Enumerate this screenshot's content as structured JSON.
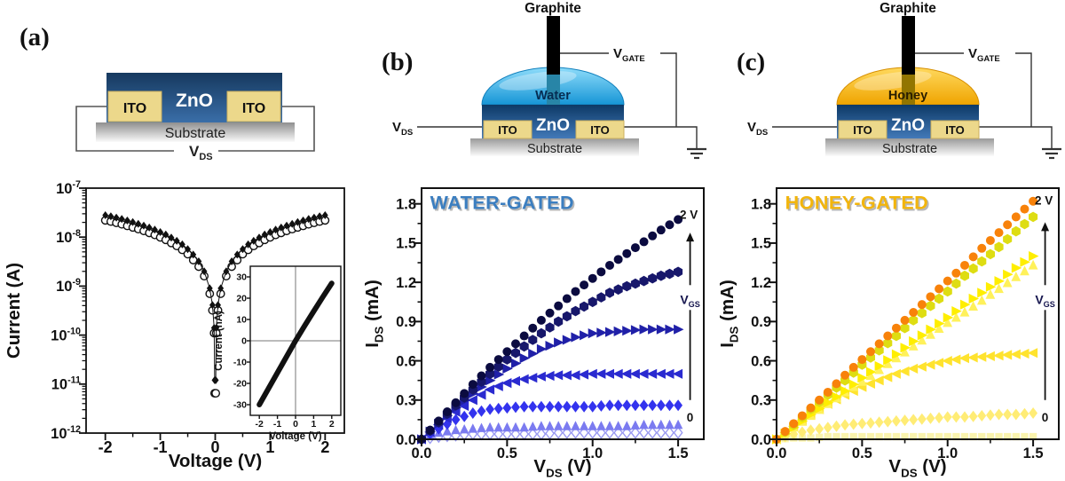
{
  "colors": {
    "water": "#29abe2",
    "honey": "#f5a800",
    "zno_blue": "#2d5f9a",
    "ito_tan": "#ecd88b",
    "substrate_gray": "#9a9a9a",
    "water_badge": "#3b7ec0",
    "honey_badge": "#f2b50d",
    "series_blue_dark": "#0b0b40",
    "series_orange": "#f8820a",
    "annotation_navy": "#15154e"
  },
  "panels": {
    "a": {
      "tag": "(a)",
      "schematic": {
        "zno": "ZnO",
        "ito_left": "ITO",
        "ito_right": "ITO",
        "substrate": "Substrate",
        "vds_base": "V",
        "vds_sub": "DS"
      }
    },
    "b": {
      "tag": "(b)",
      "schematic": {
        "electrode": "Graphite",
        "liquid": "Water",
        "zno": "ZnO",
        "ito_left": "ITO",
        "ito_right": "ITO",
        "substrate": "Substrate",
        "vds_base": "V",
        "vds_sub": "DS",
        "vgate_base": "V",
        "vgate_sub": "GATE"
      }
    },
    "c": {
      "tag": "(c)",
      "schematic": {
        "electrode": "Graphite",
        "liquid": "Honey",
        "zno": "ZnO",
        "ito_left": "ITO",
        "ito_right": "ITO",
        "substrate": "Substrate",
        "vds_base": "V",
        "vds_sub": "DS",
        "vgate_base": "V",
        "vgate_sub": "GATE"
      }
    }
  },
  "chart_data": [
    {
      "id": "a-main",
      "type": "scatter",
      "xlabel": [
        {
          "t": "Voltage (V)"
        }
      ],
      "ylabel": [
        {
          "t": "Current (A)"
        }
      ],
      "xlim": [
        -2.35,
        2.35
      ],
      "ylim": [
        1e-12,
        1e-07
      ],
      "yscale": "log",
      "x_major": {
        "v": [
          -2,
          -1,
          0,
          1,
          2
        ],
        "t": [
          "-2",
          "-1",
          "0",
          "1",
          "2"
        ]
      },
      "x_minor": [
        -1.5,
        -0.5,
        0.5,
        1.5
      ],
      "y_major": [
        {
          "v": 1e-07,
          "exp": "-7"
        },
        {
          "v": 1e-08,
          "exp": "-8"
        },
        {
          "v": 1e-09,
          "exp": "-9"
        },
        {
          "v": 1e-10,
          "exp": "-10"
        },
        {
          "v": 1e-11,
          "exp": "-11"
        },
        {
          "v": 1e-12,
          "exp": "-12"
        }
      ],
      "y_log_minor": true,
      "series": [
        {
          "name": "iv-sweep-open-circles",
          "marker": "circle-open",
          "color": "#111111",
          "size": 4.2,
          "x": [
            -2,
            -1.9,
            -1.8,
            -1.7,
            -1.6,
            -1.5,
            -1.4,
            -1.3,
            -1.2,
            -1.1,
            -1.0,
            -0.9,
            -0.8,
            -0.7,
            -0.6,
            -0.5,
            -0.4,
            -0.3,
            -0.2,
            -0.1,
            -0.05,
            -0.02,
            -0.01,
            0.01,
            0.02,
            0.05,
            0.1,
            0.2,
            0.3,
            0.4,
            0.5,
            0.6,
            0.7,
            0.8,
            0.9,
            1.0,
            1.1,
            1.2,
            1.3,
            1.4,
            1.5,
            1.6,
            1.7,
            1.8,
            1.9,
            2.0
          ],
          "y": [
            2.2e-08,
            2.08e-08,
            1.96e-08,
            1.83e-08,
            1.7e-08,
            1.58e-08,
            1.46e-08,
            1.34e-08,
            1.22e-08,
            1.11e-08,
            9.9e-09,
            8.8e-09,
            7.6e-09,
            6.6e-09,
            5.5e-09,
            4.5e-09,
            3.4e-09,
            2.5e-09,
            1.6e-09,
            7e-10,
            3.2e-10,
            1.1e-10,
            6.5e-12,
            6.5e-12,
            1.1e-10,
            3.2e-10,
            7e-10,
            1.6e-09,
            2.5e-09,
            3.4e-09,
            4.5e-09,
            5.5e-09,
            6.6e-09,
            7.6e-09,
            8.8e-09,
            9.9e-09,
            1.11e-08,
            1.22e-08,
            1.34e-08,
            1.46e-08,
            1.58e-08,
            1.7e-08,
            1.83e-08,
            1.96e-08,
            2.08e-08,
            2.2e-08
          ]
        },
        {
          "name": "iv-sweep-filled-diamonds",
          "marker": "diamond",
          "color": "#111111",
          "size": 3.6,
          "line": true,
          "width": 1,
          "x": [
            -2,
            -1.9,
            -1.8,
            -1.7,
            -1.6,
            -1.5,
            -1.4,
            -1.3,
            -1.2,
            -1.1,
            -1.0,
            -0.9,
            -0.8,
            -0.7,
            -0.6,
            -0.5,
            -0.4,
            -0.3,
            -0.2,
            -0.1,
            -0.05,
            -0.02,
            -0.01,
            0.01,
            0.02,
            0.05,
            0.1,
            0.2,
            0.3,
            0.4,
            0.5,
            0.6,
            0.7,
            0.8,
            0.9,
            1.0,
            1.1,
            1.2,
            1.3,
            1.4,
            1.5,
            1.6,
            1.7,
            1.8,
            1.9,
            2.0
          ],
          "y": [
            2.8e-08,
            2.66e-08,
            2.5e-08,
            2.34e-08,
            2.18e-08,
            2.02e-08,
            1.87e-08,
            1.72e-08,
            1.57e-08,
            1.42e-08,
            1.27e-08,
            1.13e-08,
            9.8e-09,
            8.4e-09,
            7.1e-09,
            5.7e-09,
            4.4e-09,
            3.2e-09,
            2e-09,
            9e-10,
            4.1e-10,
            1.4e-10,
            1.2e-11,
            1.2e-11,
            1.4e-10,
            4.1e-10,
            9e-10,
            2e-09,
            3.2e-09,
            4.4e-09,
            5.7e-09,
            7.1e-09,
            8.4e-09,
            9.8e-09,
            1.13e-08,
            1.27e-08,
            1.42e-08,
            1.57e-08,
            1.72e-08,
            1.87e-08,
            2.02e-08,
            2.18e-08,
            2.34e-08,
            2.5e-08,
            2.66e-08,
            2.8e-08
          ]
        }
      ]
    },
    {
      "id": "a-inset",
      "type": "line",
      "xlabel": [
        {
          "t": "Voltage (V)"
        }
      ],
      "ylabel": [
        {
          "t": "Current (nA)"
        }
      ],
      "xlim": [
        -2.5,
        2.5
      ],
      "ylim": [
        -35,
        35
      ],
      "x_major": {
        "v": [
          -2,
          -1,
          0,
          1,
          2
        ],
        "t": [
          "-2",
          "-1",
          "0",
          "1",
          "2"
        ]
      },
      "y_major": {
        "v": [
          30,
          20,
          10,
          0,
          -10,
          -20,
          -30
        ],
        "t": [
          "30",
          "20",
          "10",
          "0",
          "-10",
          "-20",
          "-30"
        ]
      },
      "zero_lines": true,
      "bg": "#ffffff",
      "series": [
        {
          "name": "iv-linear",
          "type": "line",
          "color": "#111111",
          "width": 6,
          "x": [
            -2,
            -1.5,
            -1,
            -0.5,
            0,
            0.5,
            1,
            1.5,
            2
          ],
          "y": [
            -30,
            -22.5,
            -15,
            -7.5,
            0,
            7,
            13.8,
            20.5,
            27
          ]
        }
      ]
    },
    {
      "id": "b",
      "type": "scatter",
      "densify": true,
      "badge": {
        "text": "WATER-GATED",
        "color": "#3b7ec0",
        "x": 0.05,
        "y": 1.76
      },
      "xlabel": [
        {
          "t": "V"
        },
        {
          "t": "DS",
          "sub": true
        },
        {
          "t": " (V)"
        }
      ],
      "ylabel": [
        {
          "t": "I"
        },
        {
          "t": "DS",
          "sub": true
        },
        {
          "t": " (mA)"
        }
      ],
      "xlim": [
        0,
        1.65
      ],
      "ylim": [
        0,
        1.92
      ],
      "x_major": {
        "v": [
          0,
          0.5,
          1,
          1.5
        ],
        "t": [
          "0.0",
          "0.5",
          "1.0",
          "1.5"
        ]
      },
      "x_minor": [
        0.25,
        0.75,
        1.25
      ],
      "y_major": {
        "v": [
          0,
          0.3,
          0.6,
          0.9,
          1.2,
          1.5,
          1.8
        ],
        "t": [
          "0.0",
          "0.3",
          "0.6",
          "0.9",
          "1.2",
          "1.5",
          "1.8"
        ]
      },
      "y_minor": [
        0.15,
        0.45,
        0.75,
        1.05,
        1.35,
        1.65
      ],
      "x": [
        0,
        0.1,
        0.2,
        0.3,
        0.4,
        0.5,
        0.6,
        0.7,
        0.8,
        0.9,
        1.0,
        1.1,
        1.2,
        1.3,
        1.4,
        1.5
      ],
      "arrow": {
        "x": 1.57,
        "y_from": 0.3,
        "y_to": 1.58,
        "label": {
          "base": "V",
          "sub": "GS"
        },
        "label_y": 1.07,
        "top_text": {
          "t": "2 V",
          "x": 1.51,
          "y": 1.72
        },
        "bottom_text": {
          "t": "0",
          "x": 1.55,
          "y": 0.17
        }
      },
      "series": [
        {
          "name": "vgs-0",
          "marker": "diamond-open",
          "color": "#9b9bf2",
          "size": 4.8,
          "y": [
            0,
            0.02,
            0.03,
            0.04,
            0.04,
            0.04,
            0.04,
            0.04,
            0.05,
            0.05,
            0.05,
            0.05,
            0.05,
            0.05,
            0.05,
            0.05
          ]
        },
        {
          "name": "vgs-step2",
          "marker": "tri-up",
          "color": "#7b7bf0",
          "size": 5.2,
          "y": [
            0,
            0.05,
            0.07,
            0.08,
            0.09,
            0.09,
            0.09,
            0.1,
            0.1,
            0.1,
            0.1,
            0.1,
            0.1,
            0.11,
            0.11,
            0.11
          ]
        },
        {
          "name": "vgs-step3",
          "marker": "diamond",
          "color": "#3333ee",
          "size": 5.2,
          "y": [
            0,
            0.08,
            0.15,
            0.2,
            0.23,
            0.24,
            0.25,
            0.25,
            0.25,
            0.25,
            0.25,
            0.26,
            0.26,
            0.26,
            0.26,
            0.26
          ]
        },
        {
          "name": "vgs-step4",
          "marker": "tri-left",
          "color": "#2a2ad0",
          "size": 5.6,
          "y": [
            0,
            0.11,
            0.21,
            0.3,
            0.38,
            0.43,
            0.46,
            0.48,
            0.49,
            0.49,
            0.5,
            0.5,
            0.5,
            0.5,
            0.5,
            0.5
          ]
        },
        {
          "name": "vgs-step5",
          "marker": "tri-right",
          "color": "#2020a8",
          "size": 5.6,
          "y": [
            0,
            0.12,
            0.24,
            0.35,
            0.45,
            0.54,
            0.62,
            0.69,
            0.74,
            0.78,
            0.81,
            0.82,
            0.83,
            0.84,
            0.84,
            0.84
          ]
        },
        {
          "name": "vgs-step6",
          "marker": "hexagon",
          "color": "#17176b",
          "size": 5.2,
          "y": [
            0,
            0.13,
            0.26,
            0.38,
            0.5,
            0.61,
            0.71,
            0.81,
            0.9,
            0.98,
            1.05,
            1.12,
            1.17,
            1.21,
            1.25,
            1.28
          ]
        },
        {
          "name": "vgs-2V",
          "marker": "circle",
          "color": "#0b0b40",
          "size": 5.0,
          "y": [
            0,
            0.14,
            0.28,
            0.42,
            0.55,
            0.67,
            0.79,
            0.91,
            1.02,
            1.13,
            1.23,
            1.33,
            1.42,
            1.51,
            1.6,
            1.68
          ]
        }
      ]
    },
    {
      "id": "c",
      "type": "scatter",
      "densify": true,
      "badge": {
        "text": "HONEY-GATED",
        "color": "#f2b50d",
        "x": 0.05,
        "y": 1.76
      },
      "xlabel": [
        {
          "t": "V"
        },
        {
          "t": "DS",
          "sub": true
        },
        {
          "t": " (V)"
        }
      ],
      "ylabel": [
        {
          "t": "I"
        },
        {
          "t": "DS",
          "sub": true
        },
        {
          "t": " (mA)"
        }
      ],
      "xlim": [
        0,
        1.65
      ],
      "ylim": [
        0,
        1.92
      ],
      "x_major": {
        "v": [
          0,
          0.5,
          1,
          1.5
        ],
        "t": [
          "0.0",
          "0.5",
          "1.0",
          "1.5"
        ]
      },
      "x_minor": [
        0.25,
        0.75,
        1.25
      ],
      "y_major": {
        "v": [
          0,
          0.3,
          0.6,
          0.9,
          1.2,
          1.5,
          1.8
        ],
        "t": [
          "0.0",
          "0.3",
          "0.6",
          "0.9",
          "1.2",
          "1.5",
          "1.8"
        ]
      },
      "y_minor": [
        0.15,
        0.45,
        0.75,
        1.05,
        1.35,
        1.65
      ],
      "x": [
        0,
        0.1,
        0.2,
        0.3,
        0.4,
        0.5,
        0.6,
        0.7,
        0.8,
        0.9,
        1.0,
        1.1,
        1.2,
        1.3,
        1.4,
        1.5
      ],
      "arrow": {
        "x": 1.57,
        "y_from": 0.3,
        "y_to": 1.66,
        "label": {
          "base": "V",
          "sub": "GS"
        },
        "label_y": 1.07,
        "top_text": {
          "t": "2 V",
          "x": 1.51,
          "y": 1.83
        },
        "bottom_text": {
          "t": "0",
          "x": 1.55,
          "y": 0.17
        }
      },
      "series": [
        {
          "name": "vgs-0",
          "marker": "square",
          "color": "#faf3ae",
          "size": 4.6,
          "y": [
            0,
            0.01,
            0.01,
            0.02,
            0.02,
            0.02,
            0.02,
            0.02,
            0.02,
            0.02,
            0.02,
            0.02,
            0.02,
            0.02,
            0.02,
            0.02
          ]
        },
        {
          "name": "vgs-step2",
          "marker": "diamond",
          "color": "#ffec75",
          "size": 5.2,
          "y": [
            0,
            0.04,
            0.07,
            0.09,
            0.11,
            0.12,
            0.13,
            0.14,
            0.15,
            0.16,
            0.17,
            0.17,
            0.18,
            0.19,
            0.19,
            0.2
          ]
        },
        {
          "name": "vgs-step3",
          "marker": "tri-left",
          "color": "#ffe32e",
          "size": 5.6,
          "y": [
            0,
            0.1,
            0.19,
            0.27,
            0.34,
            0.4,
            0.45,
            0.5,
            0.54,
            0.57,
            0.6,
            0.62,
            0.63,
            0.64,
            0.65,
            0.66
          ]
        },
        {
          "name": "vgs-step4",
          "marker": "tri-up",
          "color": "#fff15a",
          "size": 5.4,
          "y": [
            0,
            0.09,
            0.18,
            0.27,
            0.36,
            0.44,
            0.53,
            0.62,
            0.71,
            0.8,
            0.89,
            0.97,
            1.06,
            1.15,
            1.24,
            1.33
          ]
        },
        {
          "name": "vgs-step5",
          "marker": "tri-right",
          "color": "#ffee00",
          "size": 5.6,
          "y": [
            0,
            0.09,
            0.19,
            0.28,
            0.37,
            0.47,
            0.56,
            0.65,
            0.75,
            0.84,
            0.93,
            1.03,
            1.12,
            1.21,
            1.31,
            1.4
          ]
        },
        {
          "name": "vgs-step6",
          "marker": "hexagon",
          "color": "#dedd12",
          "size": 5.2,
          "y": [
            0,
            0.11,
            0.23,
            0.34,
            0.45,
            0.57,
            0.68,
            0.79,
            0.91,
            1.02,
            1.13,
            1.25,
            1.36,
            1.47,
            1.59,
            1.7
          ]
        },
        {
          "name": "vgs-2V",
          "marker": "circle",
          "color": "#f8820a",
          "size": 5.0,
          "y": [
            0,
            0.12,
            0.24,
            0.36,
            0.49,
            0.61,
            0.73,
            0.85,
            0.97,
            1.09,
            1.21,
            1.33,
            1.46,
            1.58,
            1.7,
            1.82
          ]
        }
      ]
    }
  ]
}
